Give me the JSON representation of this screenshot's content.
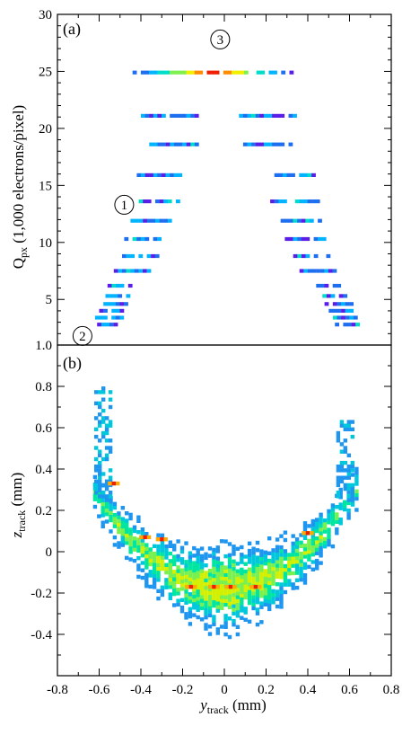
{
  "chart_data": [
    {
      "type": "heatmap",
      "panel_label": "(a)",
      "ylabel_main": "Q",
      "ylabel_sub": "px",
      "ylabel_rest": " (1,000 electrons/pixel)",
      "xlim": [
        -0.8,
        0.8
      ],
      "ylim": [
        1,
        30
      ],
      "yticks": [
        5,
        10,
        15,
        20,
        25,
        30
      ],
      "ytick_labels": [
        "5",
        "10",
        "15",
        "20",
        "25",
        "30"
      ],
      "annotations": [
        {
          "text": "1",
          "x": -0.48,
          "y": 13.3
        },
        {
          "text": "2",
          "x": -0.68,
          "y": 1.8
        },
        {
          "text": "3",
          "x": -0.02,
          "y": 27.8
        }
      ],
      "color_levels": [
        "#5a1ee6",
        "#1e6ef0",
        "#00b4ff",
        "#00ddc8",
        "#7ef050",
        "#f0f000",
        "#ff8c00",
        "#f01e00"
      ],
      "rows": [
        {
          "y": 24.9,
          "left": [
            -0.44,
            0.33
          ],
          "right": null,
          "hot": 0.0,
          "spread": 0.42,
          "peak": 7
        },
        {
          "y": 21.1,
          "left": [
            -0.4,
            -0.13
          ],
          "right": [
            0.07,
            0.33
          ],
          "hot": 0.0,
          "spread": 0.7,
          "peak": 3
        },
        {
          "y": 18.6,
          "left": [
            -0.36,
            -0.13
          ],
          "right": [
            0.09,
            0.31
          ],
          "hot": 0.0,
          "spread": 0.7,
          "peak": 3
        },
        {
          "y": 15.9,
          "left": [
            -0.42,
            -0.21
          ],
          "right": [
            0.2,
            0.42
          ],
          "hot": 0.0,
          "spread": 0.7,
          "peak": 3
        },
        {
          "y": 13.6,
          "left": [
            -0.43,
            -0.22
          ],
          "right": [
            0.22,
            0.44
          ],
          "hot": 0.0,
          "spread": 0.7,
          "peak": 3
        },
        {
          "y": 11.9,
          "left": [
            -0.45,
            -0.26
          ],
          "right": [
            0.25,
            0.45
          ],
          "hot": 0.0,
          "spread": 0.7,
          "peak": 3
        },
        {
          "y": 10.3,
          "left": [
            -0.48,
            -0.3
          ],
          "right": [
            0.29,
            0.48
          ],
          "hot": 0.0,
          "spread": 0.7,
          "peak": 3
        },
        {
          "y": 8.8,
          "left": [
            -0.51,
            -0.33
          ],
          "right": [
            0.33,
            0.5
          ],
          "hot": 0.0,
          "spread": 0.7,
          "peak": 3
        },
        {
          "y": 7.5,
          "left": [
            -0.53,
            -0.36
          ],
          "right": [
            0.36,
            0.53
          ],
          "hot": 0.0,
          "spread": 0.7,
          "peak": 3
        },
        {
          "y": 6.2,
          "left": [
            -0.56,
            -0.45
          ],
          "right": [
            0.44,
            0.56
          ],
          "hot": 0.0,
          "spread": 0.7,
          "peak": 3
        },
        {
          "y": 5.3,
          "left": [
            -0.57,
            -0.46
          ],
          "right": [
            0.47,
            0.58
          ],
          "hot": 0.0,
          "spread": 0.7,
          "peak": 3
        },
        {
          "y": 4.6,
          "left": [
            -0.58,
            -0.47
          ],
          "right": [
            0.48,
            0.6
          ],
          "hot": 0.0,
          "spread": 0.7,
          "peak": 3
        },
        {
          "y": 4.0,
          "left": [
            -0.6,
            -0.48
          ],
          "right": [
            0.5,
            0.61
          ],
          "hot": 0.0,
          "spread": 0.7,
          "peak": 3
        },
        {
          "y": 3.4,
          "left": [
            -0.62,
            -0.5
          ],
          "right": [
            0.52,
            0.62
          ],
          "hot": 0.0,
          "spread": 0.7,
          "peak": 3
        },
        {
          "y": 2.8,
          "left": [
            -0.61,
            -0.52
          ],
          "right": [
            0.53,
            0.64
          ],
          "hot": 0.0,
          "spread": 0.7,
          "peak": 3
        }
      ]
    },
    {
      "type": "heatmap",
      "panel_label": "(b)",
      "ylabel_main": "z",
      "ylabel_sub": "track",
      "ylabel_rest": " (mm)",
      "xlabel_main": "y",
      "xlabel_sub": "track",
      "xlabel_rest": " (mm)",
      "xlim": [
        -0.8,
        0.8
      ],
      "ylim": [
        -0.6,
        1.0
      ],
      "xticks": [
        -0.8,
        -0.6,
        -0.4,
        -0.2,
        0,
        0.2,
        0.4,
        0.6,
        0.8
      ],
      "xtick_labels": [
        "-0.8",
        "-0.6",
        "-0.4",
        "-0.2",
        "0",
        "0.2",
        "0.4",
        "0.6",
        "0.8"
      ],
      "yticks": [
        -0.4,
        -0.2,
        0,
        0.2,
        0.4,
        0.6,
        0.8,
        1.0
      ],
      "ytick_labels": [
        "-0.4",
        "-0.2",
        "0",
        "0.2",
        "0.4",
        "0.6",
        "0.8",
        "1.0"
      ],
      "color_levels": [
        "#1e96f0",
        "#00c8dc",
        "#00e6a0",
        "#78f050",
        "#d2f000",
        "#ffaa00",
        "#f01e00"
      ],
      "band": {
        "curve": "z = -0.18 + 1.2 * y^2",
        "x_range": [
          -0.62,
          0.64
        ],
        "half_width_min": 0.04,
        "half_width_max": 0.18
      },
      "hot_spots": [
        {
          "x": -0.53,
          "y": 0.33
        },
        {
          "x": -0.38,
          "y": 0.07
        },
        {
          "x": -0.3,
          "y": 0.06
        },
        {
          "x": -0.16,
          "y": -0.17
        },
        {
          "x": -0.05,
          "y": -0.17
        },
        {
          "x": 0.03,
          "y": -0.17
        },
        {
          "x": 0.15,
          "y": -0.17
        },
        {
          "x": 0.4,
          "y": 0.09
        }
      ]
    }
  ]
}
